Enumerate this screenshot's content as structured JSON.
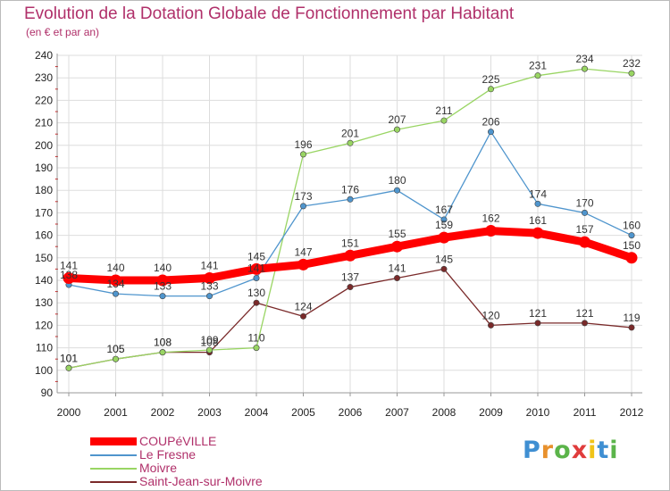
{
  "title": "Evolution de la Dotation Globale de Fonctionnement par Habitant",
  "subtitle": "(en € et par an)",
  "logo": {
    "letters": [
      "P",
      "r",
      "o",
      "x",
      "i",
      "t",
      "i"
    ],
    "colors": [
      "#3f8fd2",
      "#e8912d",
      "#5bb44a",
      "#e03c3c",
      "#f0c419",
      "#3f8fd2",
      "#5bb44a"
    ]
  },
  "colors": {
    "grid": "#dddddd",
    "axis": "#999999",
    "tick_minor": "#cc0000"
  },
  "chart_data": {
    "type": "line",
    "title": "Evolution de la Dotation Globale de Fonctionnement par Habitant",
    "subtitle": "(en € et par an)",
    "xlabel": "",
    "ylabel": "",
    "x": [
      "2000",
      "2001",
      "2002",
      "2003",
      "2004",
      "2005",
      "2006",
      "2007",
      "2008",
      "2009",
      "2010",
      "2011",
      "2012"
    ],
    "ylim": [
      90,
      240
    ],
    "yticks": [
      90,
      100,
      110,
      120,
      130,
      140,
      150,
      160,
      170,
      180,
      190,
      200,
      210,
      220,
      230,
      240
    ],
    "grid": true,
    "legend_position": "bottom-left",
    "series": [
      {
        "name": "COUPéVILLE",
        "color": "#ff0000",
        "values": [
          141,
          140,
          140,
          141,
          145,
          147,
          151,
          155,
          159,
          162,
          161,
          157,
          150
        ],
        "labels": [
          "141",
          "140",
          "140",
          "141",
          "145",
          "147",
          "151",
          "155",
          "159",
          "162",
          "161",
          "157",
          "150"
        ]
      },
      {
        "name": "Le Fresne",
        "color": "#4f95cd",
        "values": [
          138,
          134,
          133,
          133,
          141,
          173,
          176,
          180,
          167,
          206,
          174,
          170,
          160
        ],
        "labels": [
          "138",
          "134",
          "133",
          "133",
          "141",
          "173",
          "176",
          "180",
          "167",
          "206",
          "174",
          "170",
          "160"
        ]
      },
      {
        "name": "Moivre",
        "color": "#99d563",
        "values": [
          101,
          105,
          108,
          109,
          110,
          196,
          201,
          207,
          211,
          225,
          231,
          234,
          232
        ],
        "labels": [
          "101",
          "105",
          "108",
          "109",
          "110",
          "196",
          "201",
          "207",
          "211",
          "225",
          "231",
          "234",
          "232"
        ]
      },
      {
        "name": "Saint-Jean-sur-Moivre",
        "color": "#7a2a2a",
        "values": [
          101,
          105,
          108,
          108,
          130,
          124,
          137,
          141,
          145,
          120,
          121,
          121,
          119
        ],
        "labels": [
          "101",
          "105",
          "108",
          "108",
          "130",
          "124",
          "137",
          "141",
          "145",
          "120",
          "121",
          "121",
          "119"
        ]
      }
    ]
  }
}
